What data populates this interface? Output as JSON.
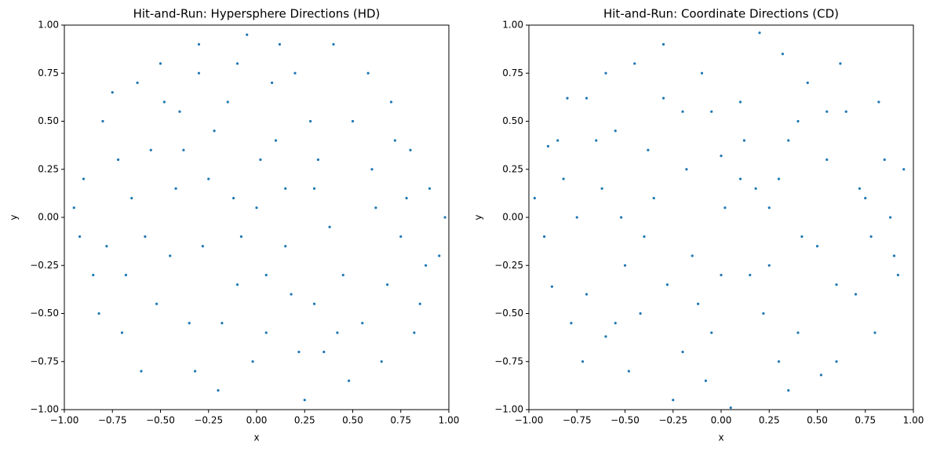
{
  "chart_data": [
    {
      "type": "scatter",
      "title": "Hit-and-Run: Hypersphere Directions (HD)",
      "xlabel": "x",
      "ylabel": "y",
      "color": "#1f77b4",
      "xlim": [
        -1,
        1
      ],
      "ylim": [
        -1,
        1
      ],
      "xticks": [
        {
          "value": -1,
          "label": "−1.00"
        },
        {
          "value": -0.75,
          "label": "−0.75"
        },
        {
          "value": -0.5,
          "label": "−0.50"
        },
        {
          "value": -0.25,
          "label": "−0.25"
        },
        {
          "value": 0,
          "label": "0.00"
        },
        {
          "value": 0.25,
          "label": "0.25"
        },
        {
          "value": 0.5,
          "label": "0.50"
        },
        {
          "value": 0.75,
          "label": "0.75"
        },
        {
          "value": 1,
          "label": "1.00"
        }
      ],
      "yticks": [
        {
          "value": -1,
          "label": "−1.00"
        },
        {
          "value": -0.75,
          "label": "−0.75"
        },
        {
          "value": -0.5,
          "label": "−0.50"
        },
        {
          "value": -0.25,
          "label": "−0.25"
        },
        {
          "value": 0,
          "label": "0.00"
        },
        {
          "value": 0.25,
          "label": "0.25"
        },
        {
          "value": 0.5,
          "label": "0.50"
        },
        {
          "value": 0.75,
          "label": "0.75"
        },
        {
          "value": 1,
          "label": "1.00"
        }
      ],
      "x": [
        -0.95,
        -0.9,
        -0.85,
        -0.8,
        -0.75,
        -0.7,
        -0.65,
        -0.6,
        -0.55,
        -0.5,
        -0.45,
        -0.4,
        -0.35,
        -0.3,
        -0.25,
        -0.2,
        -0.15,
        -0.1,
        -0.05,
        0,
        0.05,
        0.1,
        0.15,
        0.2,
        0.25,
        0.3,
        0.35,
        0.4,
        0.45,
        0.5,
        0.55,
        0.6,
        0.65,
        0.7,
        0.75,
        0.8,
        0.85,
        0.9,
        0.95,
        0.98,
        -0.92,
        -0.82,
        -0.72,
        -0.62,
        -0.52,
        -0.42,
        -0.32,
        -0.22,
        -0.12,
        -0.02,
        0.08,
        0.18,
        0.28,
        0.38,
        0.48,
        0.58,
        0.68,
        0.78,
        0.88,
        0.02,
        -0.28,
        0.22,
        -0.58,
        0.62,
        -0.38,
        0.32,
        -0.18,
        0.12,
        -0.68,
        0.72,
        -0.48,
        0.42,
        -0.08,
        0.15,
        -0.3,
        0.3,
        -0.78,
        0.82,
        -0.1,
        0.05
      ],
      "values": [
        0.05,
        0.2,
        -0.3,
        0.5,
        0.65,
        -0.6,
        0.1,
        -0.8,
        0.35,
        0.8,
        -0.2,
        0.55,
        -0.55,
        0.9,
        0.2,
        -0.9,
        0.6,
        -0.35,
        0.95,
        0.05,
        -0.6,
        0.4,
        -0.15,
        0.75,
        -0.95,
        0.15,
        -0.7,
        0.9,
        -0.3,
        0.5,
        -0.55,
        0.25,
        -0.75,
        0.6,
        -0.1,
        0.35,
        -0.45,
        0.15,
        -0.2,
        0,
        -0.1,
        -0.5,
        0.3,
        0.7,
        -0.45,
        0.15,
        -0.8,
        0.45,
        0.1,
        -0.75,
        0.7,
        -0.4,
        0.5,
        -0.05,
        -0.85,
        0.75,
        -0.35,
        0.1,
        -0.25,
        0.3,
        -0.15,
        -0.7,
        -0.1,
        0.05,
        0.35,
        0.3,
        -0.55,
        0.9,
        -0.3,
        0.4,
        0.6,
        -0.6,
        -0.1,
        0.15,
        0.75,
        -0.45,
        -0.15,
        -0.6,
        0.8,
        -0.3
      ]
    },
    {
      "type": "scatter",
      "title": "Hit-and-Run: Coordinate Directions (CD)",
      "xlabel": "x",
      "ylabel": "y",
      "color": "#1f77b4",
      "xlim": [
        -1,
        1
      ],
      "ylim": [
        -1,
        1
      ],
      "xticks": [
        {
          "value": -1,
          "label": "−1.00"
        },
        {
          "value": -0.75,
          "label": "−0.75"
        },
        {
          "value": -0.5,
          "label": "−0.50"
        },
        {
          "value": -0.25,
          "label": "−0.25"
        },
        {
          "value": 0,
          "label": "0.00"
        },
        {
          "value": 0.25,
          "label": "0.25"
        },
        {
          "value": 0.5,
          "label": "0.50"
        },
        {
          "value": 0.75,
          "label": "0.75"
        },
        {
          "value": 1,
          "label": "1.00"
        }
      ],
      "yticks": [
        {
          "value": -1,
          "label": "−1.00"
        },
        {
          "value": -0.75,
          "label": "−0.75"
        },
        {
          "value": -0.5,
          "label": "−0.50"
        },
        {
          "value": -0.25,
          "label": "−0.25"
        },
        {
          "value": 0,
          "label": "0.00"
        },
        {
          "value": 0.25,
          "label": "0.25"
        },
        {
          "value": 0.5,
          "label": "0.50"
        },
        {
          "value": 0.75,
          "label": "0.75"
        },
        {
          "value": 1,
          "label": "1.00"
        }
      ],
      "x": [
        -0.97,
        -0.9,
        -0.88,
        -0.8,
        -0.78,
        -0.7,
        -0.7,
        -0.62,
        -0.6,
        -0.55,
        -0.5,
        -0.45,
        -0.42,
        -0.35,
        -0.3,
        -0.25,
        -0.2,
        -0.15,
        -0.1,
        -0.05,
        0,
        0.05,
        0.1,
        0.15,
        0.2,
        0.25,
        0.3,
        0.35,
        0.4,
        0.45,
        0.5,
        0.55,
        0.6,
        0.65,
        0.7,
        0.75,
        0.8,
        0.85,
        0.9,
        0.95,
        -0.92,
        -0.82,
        -0.72,
        -0.65,
        -0.52,
        -0.48,
        -0.38,
        -0.28,
        -0.18,
        -0.08,
        0.02,
        0.12,
        0.22,
        0.32,
        0.42,
        0.52,
        0.62,
        0.72,
        0.82,
        0.92,
        -0.3,
        0.3,
        -0.6,
        0.6,
        -0.4,
        0.4,
        -0.12,
        0.18,
        -0.75,
        0.78,
        0,
        0.1,
        -0.2,
        0.25,
        -0.55,
        0.55,
        -0.85,
        0.88,
        -0.05,
        0.35
      ],
      "values": [
        0.1,
        0.37,
        -0.36,
        0.62,
        -0.55,
        0.62,
        -0.4,
        0.15,
        -0.62,
        0.45,
        -0.25,
        0.8,
        -0.5,
        0.1,
        0.9,
        -0.95,
        0.55,
        -0.2,
        0.75,
        -0.6,
        0.32,
        -0.99,
        0.6,
        -0.3,
        0.96,
        0.05,
        -0.75,
        0.4,
        -0.6,
        0.7,
        -0.15,
        0.3,
        -0.75,
        0.55,
        -0.4,
        0.1,
        -0.6,
        0.3,
        -0.2,
        0.25,
        -0.1,
        0.2,
        -0.75,
        0.4,
        0,
        -0.8,
        0.35,
        -0.35,
        0.25,
        -0.85,
        0.05,
        0.4,
        -0.5,
        0.85,
        -0.1,
        -0.82,
        0.8,
        0.15,
        0.6,
        -0.3,
        0.62,
        0.2,
        0.75,
        -0.35,
        -0.1,
        0.5,
        -0.45,
        0.15,
        0,
        -0.1,
        -0.3,
        0.2,
        -0.7,
        -0.25,
        -0.55,
        0.55,
        0.4,
        0,
        0.55,
        -0.9
      ]
    }
  ]
}
